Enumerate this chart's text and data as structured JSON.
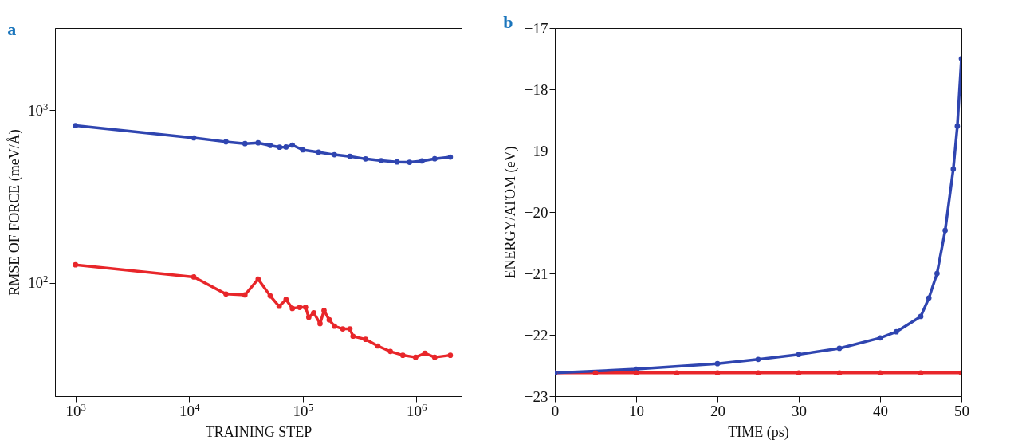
{
  "chart_data": [
    {
      "type": "line",
      "title": "a",
      "xlabel": "TRAINING STEP",
      "ylabel": "RMSE OF FORCE (meV/Å)",
      "log": "xy",
      "grid": false,
      "legend": false,
      "marker": "circle",
      "line_style": "solid",
      "xlim": [
        660,
        2500000
      ],
      "ylim": [
        22,
        3000
      ],
      "xticks": [
        {
          "value": 1000,
          "label": "10$^{3}$"
        },
        {
          "value": 10000,
          "label": "10$^{4}$"
        },
        {
          "value": 100000,
          "label": "10$^{5}$"
        },
        {
          "value": 1000000,
          "label": "10$^{6}$"
        }
      ],
      "yticks": [
        {
          "value": 100,
          "label": "10$^{2}$"
        },
        {
          "value": 1000,
          "label": "10$^{3}$"
        }
      ],
      "series": [
        {
          "color": "#2f45b0",
          "x": [
            1000,
            11000,
            21100,
            31000,
            40500,
            51700,
            62600,
            71300,
            81000,
            100000,
            138000,
            190000,
            260000,
            357000,
            490000,
            676000,
            871000,
            1120000,
            1450000,
            1990000
          ],
          "values": [
            815,
            691,
            656,
            640,
            647,
            625,
            610,
            612,
            628,
            589,
            571,
            552,
            540,
            522,
            510,
            501,
            499,
            508,
            523,
            535
          ]
        },
        {
          "color": "#e8262a",
          "x": [
            1000,
            11000,
            21100,
            31000,
            40500,
            51700,
            62000,
            71300,
            81000,
            94000,
            106000,
            113000,
            125000,
            142000,
            154000,
            171000,
            190000,
            225000,
            260000,
            277000,
            357000,
            458000,
            590000,
            760000,
            985000,
            1190000,
            1450000,
            1990000
          ],
          "values": [
            127,
            108,
            86,
            85,
            105,
            84,
            73,
            80,
            71,
            72,
            72,
            63,
            67,
            58,
            69,
            61,
            56,
            54,
            54,
            49,
            47,
            43,
            40,
            38,
            37,
            39,
            37,
            38
          ]
        }
      ]
    },
    {
      "type": "line",
      "title": "b",
      "xlabel": "TIME (ps)",
      "ylabel": "ENERGY/ATOM (eV)",
      "grid": false,
      "legend": false,
      "marker": "circle",
      "line_style": "solid",
      "xlim": [
        0,
        50
      ],
      "ylim": [
        -23,
        -17
      ],
      "xticks": [
        0,
        10,
        20,
        30,
        40,
        50
      ],
      "yticks": [
        {
          "value": -23,
          "label": "−23"
        },
        {
          "value": -22,
          "label": "−22"
        },
        {
          "value": -21,
          "label": "−21"
        },
        {
          "value": -20,
          "label": "−20"
        },
        {
          "value": -19,
          "label": "−19"
        },
        {
          "value": -18,
          "label": "−18"
        },
        {
          "value": -17,
          "label": "−17"
        }
      ],
      "series": [
        {
          "color": "#e8262a",
          "x": [
            0,
            5,
            10,
            15,
            20,
            25,
            30,
            35,
            40,
            45,
            50
          ],
          "values": [
            -22.62,
            -22.62,
            -22.62,
            -22.62,
            -22.62,
            -22.62,
            -22.62,
            -22.62,
            -22.62,
            -22.62,
            -22.62
          ]
        },
        {
          "color": "#2f45b0",
          "x": [
            0,
            10,
            20,
            25,
            30,
            35,
            40,
            42,
            45,
            46,
            47,
            48,
            49,
            49.5,
            50
          ],
          "values": [
            -22.62,
            -22.56,
            -22.47,
            -22.4,
            -22.32,
            -22.22,
            -22.05,
            -21.95,
            -21.7,
            -21.4,
            -21.0,
            -20.3,
            -19.3,
            -18.6,
            -17.5
          ]
        }
      ]
    }
  ]
}
